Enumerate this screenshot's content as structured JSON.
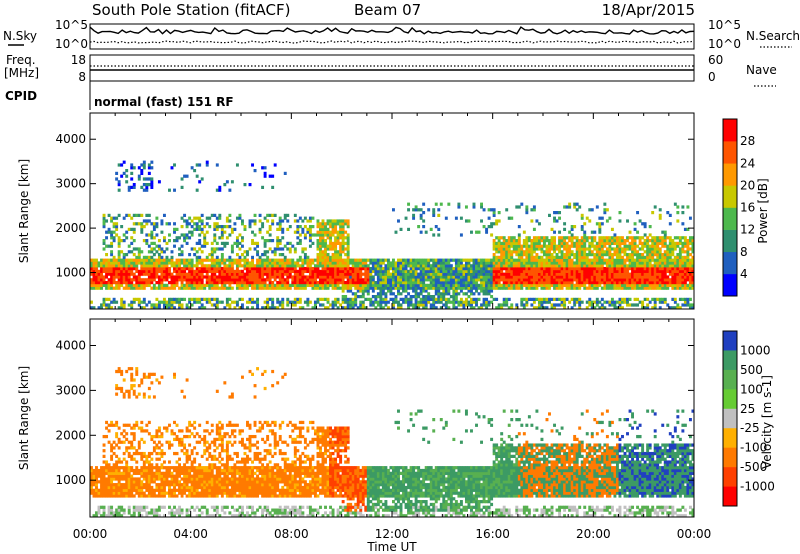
{
  "header": {
    "station": "South Pole Station (fitACF)",
    "beam": "Beam 07",
    "date": "18/Apr/2015"
  },
  "side_labels": {
    "nsky": "N.Sky",
    "nsearch": "N.Search",
    "freq_line1": "Freq.",
    "freq_line2": "[MHz]",
    "nave": "Nave",
    "cpid": "CPID",
    "exp": "normal (fast) 151 RF"
  },
  "strip_ticks": {
    "noise_top": "10^5",
    "noise_bot": "10^0",
    "noise_top_r": "10^5",
    "noise_bot_r": "10^0",
    "freq_top": "18",
    "freq_bot": "8",
    "nave_top": "60",
    "nave_bot": "0"
  },
  "chart_data": [
    {
      "type": "heatmap",
      "panel": "power",
      "xlabel": "",
      "ylabel": "Slant Range [km]",
      "x_range": [
        "00:00",
        "24:00"
      ],
      "ylim": [
        180,
        4590
      ],
      "yticks": [
        "1000",
        "2000",
        "3000",
        "4000"
      ],
      "colorbar_label": "Power [dB]",
      "colorbar_ticks": [
        "4",
        "8",
        "12",
        "16",
        "20",
        "24",
        "28"
      ],
      "colorbar_colors": [
        "#0000ff",
        "#1f5fbf",
        "#2f8f6f",
        "#4db84d",
        "#c8c800",
        "#ff9900",
        "#ff5500",
        "#ff0000"
      ]
    },
    {
      "type": "heatmap",
      "panel": "velocity",
      "xlabel": "Time UT",
      "ylabel": "Slant Range [km]",
      "x_range": [
        "00:00",
        "24:00"
      ],
      "xticks": [
        "00:00",
        "04:00",
        "08:00",
        "12:00",
        "16:00",
        "20:00",
        "00:00"
      ],
      "ylim": [
        180,
        4590
      ],
      "yticks": [
        "1000",
        "2000",
        "3000",
        "4000"
      ],
      "colorbar_label": "Velocity [m s-1]",
      "colorbar_ticks": [
        "1000",
        "500",
        "100",
        "25",
        "-25",
        "-100",
        "-500",
        "-1000"
      ],
      "colorbar_colors": [
        "#2040c0",
        "#3c9a64",
        "#58b050",
        "#66cc33",
        "#c0c0c0",
        "#ffb000",
        "#ff7a00",
        "#ff4000",
        "#ff0000"
      ]
    }
  ]
}
